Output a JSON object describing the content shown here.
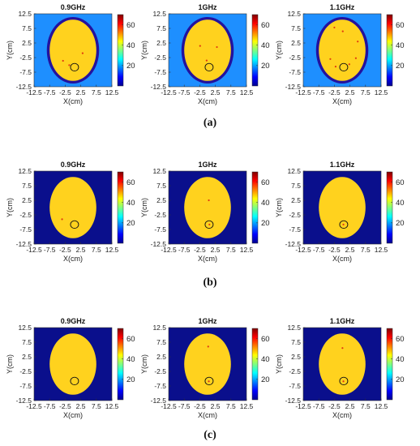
{
  "colorbar": {
    "min": 0,
    "max": 70,
    "ticks": [
      "20",
      "40",
      "60"
    ],
    "colormap": "jet"
  },
  "axes": {
    "xlabel": "X(cm)",
    "ylabel": "Y(cm)",
    "xticks": [
      "-12.5",
      "-7.5",
      "-2.5",
      "2.5",
      "7.5",
      "12.5"
    ],
    "yticks": [
      "12.5",
      "7.5",
      "2.5",
      "-2.5",
      "-7.5",
      "-12.5"
    ],
    "range": [
      -12.5,
      12.5
    ]
  },
  "chart_data": [
    {
      "type": "heatmap",
      "row": "(a)",
      "title": "0.9GHz",
      "background": "#1e8fff",
      "phantom_rx": 7.5,
      "phantom_ry": 10.5,
      "rim": true,
      "tumor": {
        "x": 0.5,
        "y": -5.8,
        "r": 1.3
      },
      "hotspots": [
        {
          "x": -3.2,
          "y": -3.6
        },
        {
          "x": 3.1,
          "y": -1.0
        },
        {
          "x": -1.2,
          "y": -5.1
        }
      ],
      "ylim": [
        -12.5,
        12.5
      ],
      "xlim": [
        -12.5,
        12.5
      ]
    },
    {
      "type": "heatmap",
      "row": "(a)",
      "title": "1GHz",
      "background": "#1e8fff",
      "phantom_rx": 7.5,
      "phantom_ry": 10.5,
      "rim": true,
      "tumor": {
        "x": 0.5,
        "y": -5.8,
        "r": 1.3
      },
      "hotspots": [
        {
          "x": -2.4,
          "y": 1.5
        },
        {
          "x": 3.0,
          "y": 1.1
        },
        {
          "x": -0.3,
          "y": -3.5
        }
      ],
      "ylim": [
        -12.5,
        12.5
      ],
      "xlim": [
        -12.5,
        12.5
      ]
    },
    {
      "type": "heatmap",
      "row": "(a)",
      "title": "1.1GHz",
      "background": "#1e8fff",
      "phantom_rx": 7.5,
      "phantom_ry": 10.5,
      "rim": true,
      "tumor": {
        "x": 0.5,
        "y": -5.8,
        "r": 1.3
      },
      "hotspots": [
        {
          "x": -2.5,
          "y": 7.8
        },
        {
          "x": 0.2,
          "y": 6.5
        },
        {
          "x": 5.0,
          "y": 3.0
        },
        {
          "x": -3.8,
          "y": -3.0
        },
        {
          "x": 4.4,
          "y": -2.7
        },
        {
          "x": -2.1,
          "y": -5.6
        },
        {
          "x": 2.3,
          "y": -4.8
        }
      ],
      "ylim": [
        -12.5,
        12.5
      ],
      "xlim": [
        -12.5,
        12.5
      ]
    },
    {
      "type": "heatmap",
      "row": "(b)",
      "title": "0.9GHz",
      "background": "#0a0f8c",
      "phantom_rx": 7.5,
      "phantom_ry": 10.5,
      "rim": false,
      "tumor": {
        "x": 0.5,
        "y": -5.8,
        "r": 1.3
      },
      "hotspots": [
        {
          "x": -3.5,
          "y": -4.0
        }
      ],
      "ylim": [
        -12.5,
        12.5
      ],
      "xlim": [
        -12.5,
        12.5
      ]
    },
    {
      "type": "heatmap",
      "row": "(b)",
      "title": "1GHz",
      "background": "#0a0f8c",
      "phantom_rx": 7.5,
      "phantom_ry": 10.5,
      "rim": false,
      "tumor": {
        "x": 0.5,
        "y": -5.8,
        "r": 1.3
      },
      "hotspots": [
        {
          "x": 0.4,
          "y": 2.5
        },
        {
          "x": 0.6,
          "y": -5.8
        }
      ],
      "ylim": [
        -12.5,
        12.5
      ],
      "xlim": [
        -12.5,
        12.5
      ]
    },
    {
      "type": "heatmap",
      "row": "(b)",
      "title": "1.1GHz",
      "background": "#0a0f8c",
      "phantom_rx": 7.5,
      "phantom_ry": 10.5,
      "rim": false,
      "tumor": {
        "x": 0.5,
        "y": -5.8,
        "r": 1.3
      },
      "hotspots": [
        {
          "x": 0.4,
          "y": -5.8
        }
      ],
      "ylim": [
        -12.5,
        12.5
      ],
      "xlim": [
        -12.5,
        12.5
      ]
    },
    {
      "type": "heatmap",
      "row": "(c)",
      "title": "0.9GHz",
      "background": "#0a0f8c",
      "phantom_rx": 7.5,
      "phantom_ry": 10.5,
      "rim": false,
      "tumor": {
        "x": 0.5,
        "y": -5.8,
        "r": 1.3
      },
      "hotspots": [],
      "ylim": [
        -12.5,
        12.5
      ],
      "xlim": [
        -12.5,
        12.5
      ]
    },
    {
      "type": "heatmap",
      "row": "(c)",
      "title": "1GHz",
      "background": "#0a0f8c",
      "phantom_rx": 7.5,
      "phantom_ry": 10.5,
      "rim": false,
      "tumor": {
        "x": 0.5,
        "y": -5.8,
        "r": 1.3
      },
      "hotspots": [
        {
          "x": 0.2,
          "y": 6.0
        },
        {
          "x": 0.4,
          "y": -5.9
        }
      ],
      "ylim": [
        -12.5,
        12.5
      ],
      "xlim": [
        -12.5,
        12.5
      ]
    },
    {
      "type": "heatmap",
      "row": "(c)",
      "title": "1.1GHz",
      "background": "#0a0f8c",
      "phantom_rx": 7.5,
      "phantom_ry": 10.5,
      "rim": false,
      "tumor": {
        "x": 0.5,
        "y": -5.8,
        "r": 1.3
      },
      "hotspots": [
        {
          "x": 0.1,
          "y": 5.5
        },
        {
          "x": 0.4,
          "y": -5.9
        }
      ],
      "ylim": [
        -12.5,
        12.5
      ],
      "xlim": [
        -12.5,
        12.5
      ]
    }
  ],
  "row_labels": [
    "(a)",
    "(b)",
    "(c)"
  ],
  "colors": {
    "phantom": "#ffd21e",
    "rim": "#23129e",
    "hotspot": "#e03a10",
    "tumor_outline": "#111111"
  }
}
